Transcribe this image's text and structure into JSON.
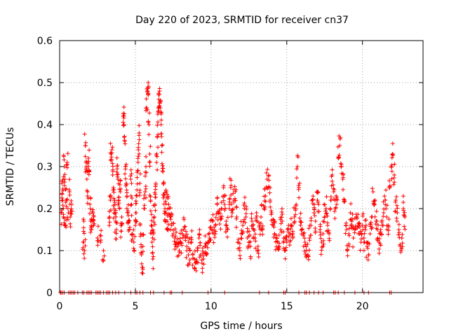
{
  "chart_data": {
    "type": "scatter",
    "title": "Day 220 of 2023, SRMTID for receiver cn37",
    "xlabel": "GPS time / hours",
    "ylabel": "SRMTID / TECUs",
    "xlim": [
      0,
      24
    ],
    "ylim": [
      0,
      0.6
    ],
    "xticks": [
      0,
      5,
      10,
      15,
      20
    ],
    "yticks": [
      0,
      0.1,
      0.2,
      0.3,
      0.4,
      0.5,
      0.6
    ],
    "grid": true,
    "marker": "+",
    "color": "#ff0000",
    "series": [
      {
        "name": "SRMTID",
        "points": [
          [
            0.1,
            0.19
          ],
          [
            0.15,
            0.26
          ],
          [
            0.2,
            0.22
          ],
          [
            0.25,
            0.18
          ],
          [
            0.3,
            0.3
          ],
          [
            0.35,
            0.27
          ],
          [
            0.4,
            0.16
          ],
          [
            0.45,
            0.22
          ],
          [
            0.5,
            0.31
          ],
          [
            0.55,
            0.2
          ],
          [
            0.65,
            0.24
          ],
          [
            0.7,
            0.18
          ],
          [
            0.8,
            0.21
          ],
          [
            1.55,
            0.12
          ],
          [
            1.6,
            0.17
          ],
          [
            1.65,
            0.1
          ],
          [
            1.7,
            0.35
          ],
          [
            1.75,
            0.3
          ],
          [
            1.8,
            0.27
          ],
          [
            1.85,
            0.24
          ],
          [
            1.9,
            0.32
          ],
          [
            1.95,
            0.29
          ],
          [
            2.0,
            0.21
          ],
          [
            2.05,
            0.17
          ],
          [
            2.1,
            0.15
          ],
          [
            2.2,
            0.19
          ],
          [
            2.25,
            0.16
          ],
          [
            2.5,
            0.13
          ],
          [
            2.7,
            0.12
          ],
          [
            2.9,
            0.1
          ],
          [
            3.3,
            0.18
          ],
          [
            3.35,
            0.22
          ],
          [
            3.4,
            0.33
          ],
          [
            3.45,
            0.34
          ],
          [
            3.5,
            0.28
          ],
          [
            3.55,
            0.25
          ],
          [
            3.6,
            0.19
          ],
          [
            3.65,
            0.21
          ],
          [
            3.7,
            0.17
          ],
          [
            3.75,
            0.15
          ],
          [
            3.8,
            0.3
          ],
          [
            3.85,
            0.27
          ],
          [
            3.9,
            0.22
          ],
          [
            3.95,
            0.2
          ],
          [
            4.0,
            0.24
          ],
          [
            4.05,
            0.16
          ],
          [
            4.1,
            0.18
          ],
          [
            4.2,
            0.42
          ],
          [
            4.25,
            0.4
          ],
          [
            4.3,
            0.36
          ],
          [
            4.35,
            0.3
          ],
          [
            4.4,
            0.26
          ],
          [
            4.45,
            0.23
          ],
          [
            4.5,
            0.19
          ],
          [
            4.55,
            0.17
          ],
          [
            4.6,
            0.15
          ],
          [
            4.7,
            0.27
          ],
          [
            4.75,
            0.21
          ],
          [
            4.8,
            0.14
          ],
          [
            4.9,
            0.12
          ],
          [
            5.0,
            0.16
          ],
          [
            5.05,
            0.19
          ],
          [
            5.1,
            0.23
          ],
          [
            5.15,
            0.29
          ],
          [
            5.2,
            0.34
          ],
          [
            5.25,
            0.38
          ],
          [
            5.3,
            0.26
          ],
          [
            5.35,
            0.14
          ],
          [
            5.4,
            0.09
          ],
          [
            5.45,
            0.06
          ],
          [
            5.5,
            0.11
          ],
          [
            5.6,
            0.2
          ],
          [
            5.65,
            0.24
          ],
          [
            5.7,
            0.3
          ],
          [
            5.75,
            0.44
          ],
          [
            5.8,
            0.48
          ],
          [
            5.85,
            0.5
          ],
          [
            5.9,
            0.4
          ],
          [
            5.95,
            0.33
          ],
          [
            6.0,
            0.22
          ],
          [
            6.05,
            0.16
          ],
          [
            6.1,
            0.12
          ],
          [
            6.15,
            0.08
          ],
          [
            6.2,
            0.14
          ],
          [
            6.25,
            0.18
          ],
          [
            6.3,
            0.21
          ],
          [
            6.35,
            0.26
          ],
          [
            6.4,
            0.31
          ],
          [
            6.45,
            0.37
          ],
          [
            6.5,
            0.43
          ],
          [
            6.55,
            0.46
          ],
          [
            6.6,
            0.48
          ],
          [
            6.65,
            0.44
          ],
          [
            6.7,
            0.4
          ],
          [
            6.75,
            0.35
          ],
          [
            6.8,
            0.29
          ],
          [
            6.85,
            0.26
          ],
          [
            6.9,
            0.23
          ],
          [
            6.95,
            0.2
          ],
          [
            7.0,
            0.19
          ],
          [
            7.05,
            0.24
          ],
          [
            7.1,
            0.17
          ],
          [
            7.15,
            0.15
          ],
          [
            7.2,
            0.21
          ],
          [
            7.3,
            0.18
          ],
          [
            7.4,
            0.16
          ],
          [
            7.5,
            0.14
          ],
          [
            7.6,
            0.13
          ],
          [
            7.7,
            0.12
          ],
          [
            7.8,
            0.11
          ],
          [
            7.9,
            0.1
          ],
          [
            8.0,
            0.12
          ],
          [
            8.1,
            0.14
          ],
          [
            8.2,
            0.15
          ],
          [
            8.3,
            0.13
          ],
          [
            8.4,
            0.11
          ],
          [
            8.5,
            0.09
          ],
          [
            8.6,
            0.1
          ],
          [
            8.7,
            0.12
          ],
          [
            8.8,
            0.09
          ],
          [
            8.9,
            0.08
          ],
          [
            9.0,
            0.07
          ],
          [
            9.1,
            0.1
          ],
          [
            9.2,
            0.13
          ],
          [
            9.3,
            0.09
          ],
          [
            9.4,
            0.07
          ],
          [
            9.5,
            0.08
          ],
          [
            9.6,
            0.11
          ],
          [
            9.7,
            0.09
          ],
          [
            9.8,
            0.12
          ],
          [
            9.9,
            0.13
          ],
          [
            10.0,
            0.15
          ],
          [
            10.1,
            0.17
          ],
          [
            10.2,
            0.14
          ],
          [
            10.3,
            0.16
          ],
          [
            10.4,
            0.21
          ],
          [
            10.5,
            0.19
          ],
          [
            10.6,
            0.18
          ],
          [
            10.7,
            0.2
          ],
          [
            10.8,
            0.23
          ],
          [
            10.9,
            0.21
          ],
          [
            11.0,
            0.17
          ],
          [
            11.1,
            0.15
          ],
          [
            11.2,
            0.2
          ],
          [
            11.3,
            0.25
          ],
          [
            11.4,
            0.19
          ],
          [
            11.5,
            0.22
          ],
          [
            11.6,
            0.24
          ],
          [
            11.7,
            0.18
          ],
          [
            11.8,
            0.12
          ],
          [
            11.9,
            0.1
          ],
          [
            12.0,
            0.14
          ],
          [
            12.1,
            0.16
          ],
          [
            12.2,
            0.2
          ],
          [
            12.3,
            0.18
          ],
          [
            12.4,
            0.13
          ],
          [
            12.5,
            0.12
          ],
          [
            12.6,
            0.11
          ],
          [
            12.7,
            0.17
          ],
          [
            12.8,
            0.15
          ],
          [
            12.9,
            0.13
          ],
          [
            13.0,
            0.19
          ],
          [
            13.1,
            0.11
          ],
          [
            13.2,
            0.16
          ],
          [
            13.3,
            0.18
          ],
          [
            13.4,
            0.15
          ],
          [
            13.5,
            0.2
          ],
          [
            13.6,
            0.23
          ],
          [
            13.7,
            0.27
          ],
          [
            13.8,
            0.25
          ],
          [
            13.9,
            0.22
          ],
          [
            14.0,
            0.19
          ],
          [
            14.1,
            0.16
          ],
          [
            14.2,
            0.14
          ],
          [
            14.3,
            0.13
          ],
          [
            14.4,
            0.12
          ],
          [
            14.5,
            0.11
          ],
          [
            14.6,
            0.15
          ],
          [
            14.7,
            0.17
          ],
          [
            14.8,
            0.13
          ],
          [
            14.9,
            0.1
          ],
          [
            15.0,
            0.12
          ],
          [
            15.1,
            0.15
          ],
          [
            15.2,
            0.14
          ],
          [
            15.3,
            0.16
          ],
          [
            15.4,
            0.13
          ],
          [
            15.5,
            0.18
          ],
          [
            15.6,
            0.2
          ],
          [
            15.7,
            0.3
          ],
          [
            15.8,
            0.25
          ],
          [
            15.9,
            0.17
          ],
          [
            16.0,
            0.15
          ],
          [
            16.1,
            0.14
          ],
          [
            16.2,
            0.12
          ],
          [
            16.3,
            0.1
          ],
          [
            16.4,
            0.09
          ],
          [
            16.5,
            0.13
          ],
          [
            16.6,
            0.16
          ],
          [
            16.7,
            0.22
          ],
          [
            16.8,
            0.19
          ],
          [
            16.9,
            0.17
          ],
          [
            17.0,
            0.24
          ],
          [
            17.1,
            0.21
          ],
          [
            17.2,
            0.15
          ],
          [
            17.3,
            0.12
          ],
          [
            17.4,
            0.14
          ],
          [
            17.5,
            0.18
          ],
          [
            17.6,
            0.2
          ],
          [
            17.7,
            0.16
          ],
          [
            17.8,
            0.14
          ],
          [
            17.9,
            0.22
          ],
          [
            18.0,
            0.28
          ],
          [
            18.1,
            0.24
          ],
          [
            18.2,
            0.2
          ],
          [
            18.3,
            0.21
          ],
          [
            18.4,
            0.32
          ],
          [
            18.5,
            0.35
          ],
          [
            18.6,
            0.3
          ],
          [
            18.7,
            0.27
          ],
          [
            18.8,
            0.22
          ],
          [
            18.9,
            0.16
          ],
          [
            19.0,
            0.1
          ],
          [
            19.1,
            0.14
          ],
          [
            19.2,
            0.19
          ],
          [
            19.3,
            0.17
          ],
          [
            19.4,
            0.13
          ],
          [
            19.5,
            0.15
          ],
          [
            19.6,
            0.18
          ],
          [
            19.7,
            0.16
          ],
          [
            19.8,
            0.14
          ],
          [
            19.9,
            0.12
          ],
          [
            20.0,
            0.16
          ],
          [
            20.1,
            0.13
          ],
          [
            20.2,
            0.15
          ],
          [
            20.3,
            0.11
          ],
          [
            20.4,
            0.09
          ],
          [
            20.5,
            0.14
          ],
          [
            20.6,
            0.18
          ],
          [
            20.7,
            0.24
          ],
          [
            20.8,
            0.21
          ],
          [
            20.9,
            0.17
          ],
          [
            21.0,
            0.15
          ],
          [
            21.1,
            0.12
          ],
          [
            21.2,
            0.14
          ],
          [
            21.3,
            0.16
          ],
          [
            21.4,
            0.19
          ],
          [
            21.5,
            0.22
          ],
          [
            21.6,
            0.18
          ],
          [
            21.7,
            0.16
          ],
          [
            21.8,
            0.25
          ],
          [
            21.9,
            0.3
          ],
          [
            22.0,
            0.33
          ],
          [
            22.1,
            0.28
          ],
          [
            22.2,
            0.22
          ],
          [
            22.3,
            0.19
          ],
          [
            22.4,
            0.15
          ],
          [
            22.5,
            0.11
          ],
          [
            22.6,
            0.13
          ],
          [
            22.7,
            0.2
          ],
          [
            22.8,
            0.18
          ]
        ]
      }
    ],
    "zero_points_x": [
      0.05,
      0.1,
      0.2,
      0.3,
      0.6,
      0.7,
      0.8,
      0.9,
      1.0,
      1.2,
      1.5,
      1.6,
      1.8,
      1.9,
      2.0,
      2.1,
      2.4,
      2.5,
      2.6,
      2.7,
      2.9,
      3.1,
      3.2,
      3.3,
      3.5,
      3.7,
      3.9,
      4.3,
      4.7,
      5.0,
      5.1,
      5.3,
      5.5,
      6.0,
      6.2,
      6.9,
      7.3,
      7.4,
      8.1,
      9.8,
      10.9,
      13.2,
      13.8,
      14.8,
      14.9,
      15.8,
      16.2,
      16.3,
      16.5,
      16.8,
      17.1,
      17.4,
      18.1,
      18.2,
      18.4,
      18.8,
      19.5,
      20.1,
      20.4,
      21.8,
      21.9
    ]
  }
}
